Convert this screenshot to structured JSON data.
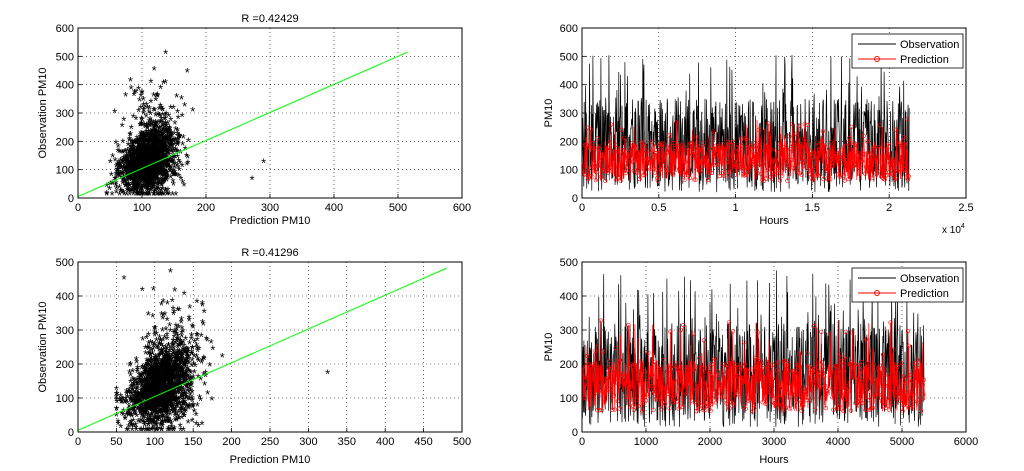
{
  "chart_data": [
    {
      "type": "scatter",
      "title": "R =0.42429",
      "xlabel": "Prediction PM10",
      "ylabel": "Observation PM10",
      "xlim": [
        0,
        600
      ],
      "ylim": [
        0,
        600
      ],
      "xticks": [
        0,
        100,
        200,
        300,
        400,
        500,
        600
      ],
      "yticks": [
        0,
        100,
        200,
        300,
        400,
        500,
        600
      ],
      "grid": true,
      "marker": "*",
      "cluster": {
        "x_range": [
          45,
          245
        ],
        "center_x": 110,
        "y_range": [
          10,
          510
        ],
        "center_y": 130
      },
      "outliers": [
        {
          "x": 290,
          "y": 125
        },
        {
          "x": 272,
          "y": 65
        }
      ],
      "fit_line": {
        "x": [
          0,
          515
        ],
        "y": [
          5,
          515
        ],
        "color": "#00ff00"
      }
    },
    {
      "type": "line",
      "title": "",
      "xlabel": "Hours",
      "ylabel": "PM10",
      "xlim": [
        0,
        25000
      ],
      "ylim": [
        0,
        600
      ],
      "xticks": [
        0,
        5000,
        10000,
        15000,
        20000,
        25000
      ],
      "xtick_labels": [
        "0",
        "0.5",
        "1",
        "1.5",
        "2",
        "2.5"
      ],
      "yticks": [
        0,
        100,
        200,
        300,
        400,
        500,
        600
      ],
      "x_multiplier_label": "x 10",
      "x_multiplier_exp": "4",
      "grid": true,
      "legend": "top-right",
      "series": [
        {
          "name": "Observation",
          "color": "#000000",
          "x_range": [
            0,
            21300
          ],
          "y_band": [
            20,
            350
          ],
          "y_peak": 510
        },
        {
          "name": "Prediction",
          "color": "#ff0000",
          "marker": "o",
          "x_range": [
            0,
            21300
          ],
          "y_band": [
            60,
            200
          ],
          "y_peak": 280
        }
      ]
    },
    {
      "type": "scatter",
      "title": "R =0.41296",
      "xlabel": "Prediction PM10",
      "ylabel": "Observation PM10",
      "xlim": [
        0,
        500
      ],
      "ylim": [
        0,
        500
      ],
      "xticks": [
        0,
        50,
        100,
        150,
        200,
        250,
        300,
        350,
        400,
        450,
        500
      ],
      "yticks": [
        0,
        100,
        200,
        300,
        400,
        500
      ],
      "grid": true,
      "marker": "*",
      "cluster": {
        "x_range": [
          50,
          240
        ],
        "center_x": 110,
        "y_range": [
          5,
          485
        ],
        "center_y": 130
      },
      "outliers": [
        {
          "x": 325,
          "y": 172
        },
        {
          "x": 60,
          "y": 450
        }
      ],
      "fit_line": {
        "x": [
          0,
          480
        ],
        "y": [
          5,
          482
        ],
        "color": "#00ff00"
      }
    },
    {
      "type": "line",
      "title": "",
      "xlabel": "Hours",
      "ylabel": "PM10",
      "xlim": [
        0,
        6000
      ],
      "ylim": [
        0,
        500
      ],
      "xticks": [
        0,
        1000,
        2000,
        3000,
        4000,
        5000,
        6000
      ],
      "yticks": [
        0,
        100,
        200,
        300,
        400,
        500
      ],
      "grid": true,
      "legend": "top-right",
      "series": [
        {
          "name": "Observation",
          "color": "#000000",
          "x_range": [
            0,
            5350
          ],
          "y_band": [
            15,
            320
          ],
          "y_peak": 480
        },
        {
          "name": "Prediction",
          "color": "#ff0000",
          "marker": "o",
          "x_range": [
            0,
            5350
          ],
          "y_band": [
            60,
            210
          ],
          "y_peak": 330
        }
      ]
    }
  ]
}
